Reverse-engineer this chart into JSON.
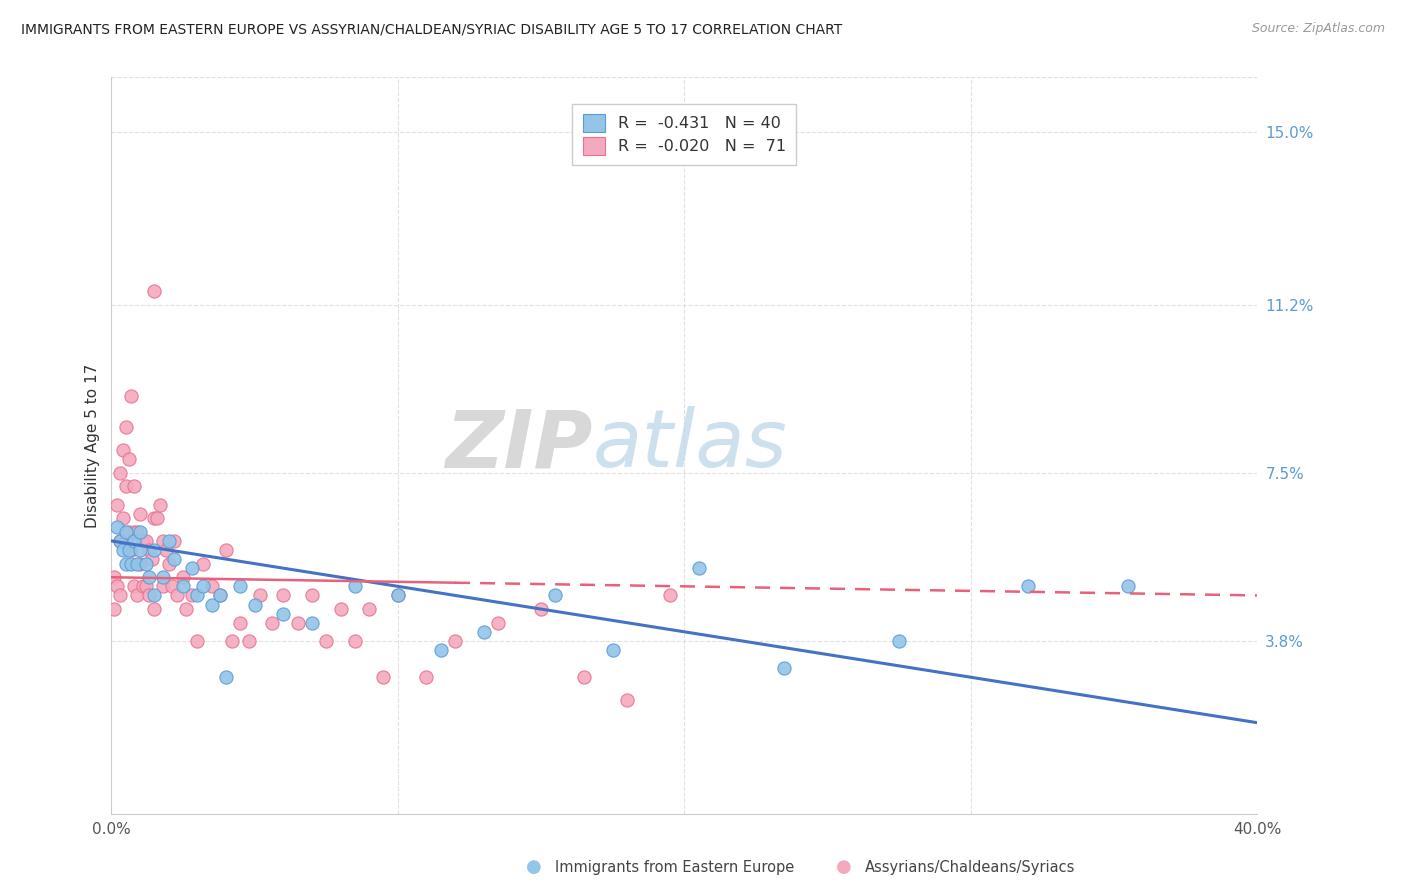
{
  "title": "IMMIGRANTS FROM EASTERN EUROPE VS ASSYRIAN/CHALDEAN/SYRIAC DISABILITY AGE 5 TO 17 CORRELATION CHART",
  "source": "Source: ZipAtlas.com",
  "ylabel": "Disability Age 5 to 17",
  "xlim": [
    0.0,
    0.4
  ],
  "ylim": [
    0.0,
    0.162
  ],
  "xtick_positions": [
    0.0,
    0.1,
    0.2,
    0.3,
    0.4
  ],
  "xtick_labels": [
    "0.0%",
    "",
    "",
    "",
    "40.0%"
  ],
  "yticks_right": [
    0.038,
    0.075,
    0.112,
    0.15
  ],
  "ytick_labels_right": [
    "3.8%",
    "7.5%",
    "11.2%",
    "15.0%"
  ],
  "legend_line1": "R =  -0.431   N = 40",
  "legend_line2": "R =  -0.020   N =  71",
  "color_blue": "#92C5E8",
  "color_blue_edge": "#5B9BD5",
  "color_pink": "#F4AABE",
  "color_pink_edge": "#E87090",
  "color_reg_blue": "#4472C4",
  "color_reg_pink": "#E8607A",
  "color_right_axis": "#5B9BD5",
  "watermark_zip": "ZIP",
  "watermark_atlas": "atlas",
  "grid_color": "#E0E0E0",
  "blue_x": [
    0.002,
    0.003,
    0.004,
    0.005,
    0.005,
    0.006,
    0.007,
    0.008,
    0.009,
    0.01,
    0.01,
    0.012,
    0.013,
    0.015,
    0.015,
    0.018,
    0.02,
    0.022,
    0.025,
    0.028,
    0.03,
    0.032,
    0.035,
    0.038,
    0.04,
    0.045,
    0.05,
    0.06,
    0.07,
    0.085,
    0.1,
    0.115,
    0.13,
    0.155,
    0.175,
    0.205,
    0.235,
    0.275,
    0.32,
    0.355
  ],
  "blue_y": [
    0.063,
    0.06,
    0.058,
    0.055,
    0.062,
    0.058,
    0.055,
    0.06,
    0.055,
    0.058,
    0.062,
    0.055,
    0.052,
    0.058,
    0.048,
    0.052,
    0.06,
    0.056,
    0.05,
    0.054,
    0.048,
    0.05,
    0.046,
    0.048,
    0.03,
    0.05,
    0.046,
    0.044,
    0.042,
    0.05,
    0.048,
    0.036,
    0.04,
    0.048,
    0.036,
    0.054,
    0.032,
    0.038,
    0.05,
    0.05
  ],
  "pink_x": [
    0.001,
    0.001,
    0.002,
    0.002,
    0.003,
    0.003,
    0.003,
    0.004,
    0.004,
    0.005,
    0.005,
    0.005,
    0.006,
    0.006,
    0.007,
    0.007,
    0.008,
    0.008,
    0.008,
    0.009,
    0.009,
    0.01,
    0.01,
    0.011,
    0.011,
    0.012,
    0.012,
    0.013,
    0.013,
    0.014,
    0.015,
    0.015,
    0.016,
    0.017,
    0.018,
    0.018,
    0.019,
    0.02,
    0.021,
    0.022,
    0.023,
    0.025,
    0.026,
    0.028,
    0.03,
    0.032,
    0.035,
    0.038,
    0.04,
    0.042,
    0.045,
    0.048,
    0.052,
    0.056,
    0.06,
    0.065,
    0.07,
    0.075,
    0.08,
    0.085,
    0.09,
    0.095,
    0.1,
    0.11,
    0.12,
    0.135,
    0.15,
    0.165,
    0.18,
    0.195,
    0.015
  ],
  "pink_y": [
    0.045,
    0.052,
    0.05,
    0.068,
    0.048,
    0.06,
    0.075,
    0.065,
    0.08,
    0.06,
    0.072,
    0.085,
    0.062,
    0.078,
    0.058,
    0.092,
    0.062,
    0.072,
    0.05,
    0.048,
    0.062,
    0.055,
    0.066,
    0.05,
    0.06,
    0.05,
    0.06,
    0.048,
    0.058,
    0.056,
    0.045,
    0.065,
    0.065,
    0.068,
    0.05,
    0.06,
    0.058,
    0.055,
    0.05,
    0.06,
    0.048,
    0.052,
    0.045,
    0.048,
    0.038,
    0.055,
    0.05,
    0.048,
    0.058,
    0.038,
    0.042,
    0.038,
    0.048,
    0.042,
    0.048,
    0.042,
    0.048,
    0.038,
    0.045,
    0.038,
    0.045,
    0.03,
    0.048,
    0.03,
    0.038,
    0.042,
    0.045,
    0.03,
    0.025,
    0.048,
    0.115
  ]
}
